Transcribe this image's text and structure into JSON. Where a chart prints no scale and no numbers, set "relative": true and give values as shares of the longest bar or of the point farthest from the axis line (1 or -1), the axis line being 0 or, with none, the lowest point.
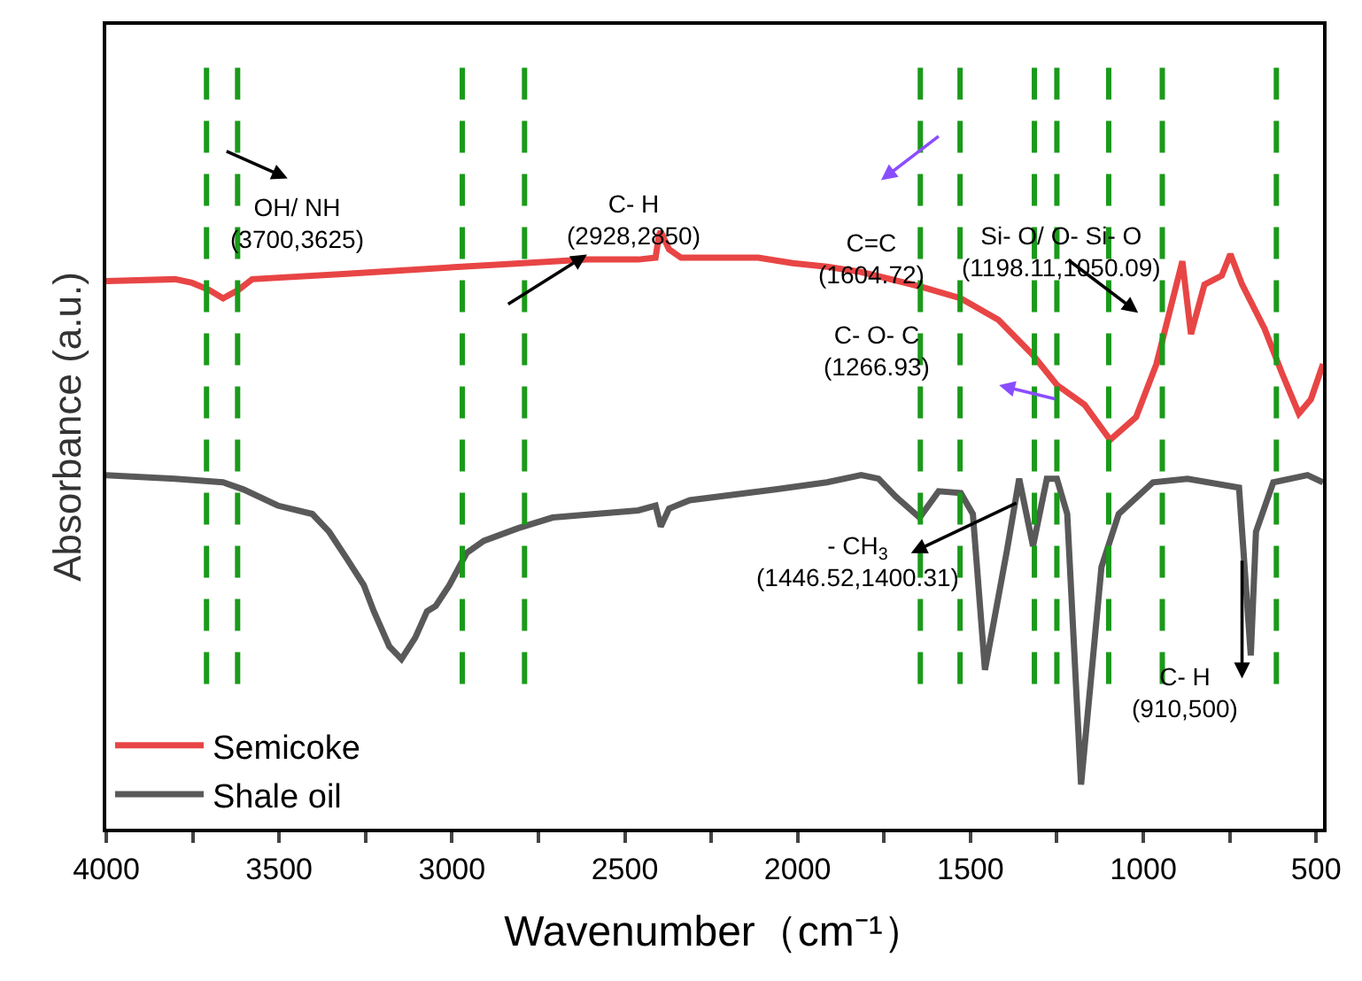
{
  "chart_data": {
    "type": "line",
    "relative": true,
    "xlabel": "Wavenumber（cm⁻¹）",
    "ylabel": "Absorbance (a.u.)",
    "xlim": [
      4000,
      480
    ],
    "xticks": [
      4000,
      {
        "value": 3750,
        "label": null
      },
      3500,
      {
        "value": 3250,
        "label": null
      },
      3000,
      {
        "value": 2750,
        "label": null
      },
      2500,
      {
        "value": 2250,
        "label": null
      },
      2000,
      {
        "value": 1750,
        "label": null
      },
      1500,
      {
        "value": 1250,
        "label": null
      },
      1000,
      {
        "value": 750,
        "label": null
      },
      500
    ],
    "tick_labels": "x",
    "legend": "bottom left",
    "line_style": "solid",
    "series": [
      {
        "name": "Semicoke",
        "color": "#e84545",
        "x": [
          4000,
          3801,
          3752,
          3702,
          3662,
          3618,
          3578,
          3305,
          2972,
          2794,
          2610,
          2461,
          2411,
          2401,
          2396,
          2372,
          2337,
          2312,
          2114,
          2014,
          1915,
          1816,
          1647,
          1528,
          1419,
          1319,
          1250,
          1170,
          1096,
          1021,
          962,
          887,
          862,
          823,
          773,
          748,
          714,
          649,
          599,
          550,
          515,
          480
        ],
        "values": [
          0.917,
          0.92,
          0.914,
          0.902,
          0.888,
          0.902,
          0.92,
          0.929,
          0.941,
          0.947,
          0.953,
          0.953,
          0.956,
          0.994,
          1.0,
          0.97,
          0.956,
          0.956,
          0.956,
          0.947,
          0.941,
          0.932,
          0.908,
          0.888,
          0.852,
          0.793,
          0.743,
          0.71,
          0.651,
          0.689,
          0.778,
          0.95,
          0.828,
          0.911,
          0.926,
          0.962,
          0.911,
          0.837,
          0.763,
          0.695,
          0.719,
          0.778
        ]
      },
      {
        "name": "Shale oil",
        "color": "#595959",
        "x": [
          4000,
          3801,
          3662,
          3603,
          3504,
          3404,
          3355,
          3305,
          3255,
          3226,
          3181,
          3146,
          3106,
          3072,
          3047,
          3007,
          2957,
          2908,
          2809,
          2709,
          2461,
          2411,
          2396,
          2372,
          2312,
          2064,
          1915,
          1816,
          1766,
          1716,
          1647,
          1592,
          1528,
          1493,
          1458,
          1394,
          1359,
          1319,
          1279,
          1250,
          1220,
          1180,
          1121,
          1071,
          972,
          872,
          723,
          689,
          674,
          624,
          525,
          480
        ],
        "values": [
          0.592,
          0.586,
          0.58,
          0.568,
          0.541,
          0.527,
          0.497,
          0.453,
          0.408,
          0.364,
          0.305,
          0.284,
          0.32,
          0.364,
          0.373,
          0.408,
          0.462,
          0.482,
          0.503,
          0.521,
          0.533,
          0.541,
          0.506,
          0.536,
          0.55,
          0.568,
          0.58,
          0.592,
          0.586,
          0.556,
          0.521,
          0.565,
          0.562,
          0.527,
          0.266,
          0.467,
          0.586,
          0.473,
          0.586,
          0.586,
          0.527,
          0.074,
          0.438,
          0.527,
          0.58,
          0.586,
          0.571,
          0.29,
          0.497,
          0.58,
          0.592,
          0.58
        ]
      }
    ],
    "ref_lines": [
      {
        "axis": "x",
        "value": 3710,
        "color": "#1a9a1a",
        "line_style": "dashed"
      },
      {
        "axis": "x",
        "value": 3620,
        "color": "#1a9a1a",
        "line_style": "dashed"
      },
      {
        "axis": "x",
        "value": 2970,
        "color": "#1a9a1a",
        "line_style": "dashed"
      },
      {
        "axis": "x",
        "value": 2790,
        "color": "#1a9a1a",
        "line_style": "dashed"
      },
      {
        "axis": "x",
        "value": 1645,
        "color": "#1a9a1a",
        "line_style": "dashed"
      },
      {
        "axis": "x",
        "value": 1530,
        "color": "#1a9a1a",
        "line_style": "dashed"
      },
      {
        "axis": "x",
        "value": 1315,
        "color": "#1a9a1a",
        "line_style": "dashed"
      },
      {
        "axis": "x",
        "value": 1250,
        "color": "#1a9a1a",
        "line_style": "dashed"
      },
      {
        "axis": "x",
        "value": 1100,
        "color": "#1a9a1a",
        "line_style": "dashed"
      },
      {
        "axis": "x",
        "value": 945,
        "color": "#1a9a1a",
        "line_style": "dashed"
      },
      {
        "axis": "x",
        "value": 615,
        "color": "#1a9a1a",
        "line_style": "dashed"
      }
    ],
    "annotations": [
      "OH/ NH\n(3700,3625)",
      "C- H\n(2928,2850)",
      "C=C\n(1604.72)",
      "Si- O/ O- Si- O\n(1198.11,1050.09)",
      "C- O- C\n(1266.93)",
      "- CH$_{3}$\n(1446.52,1400.31)",
      "C- H\n(910,500)"
    ]
  }
}
